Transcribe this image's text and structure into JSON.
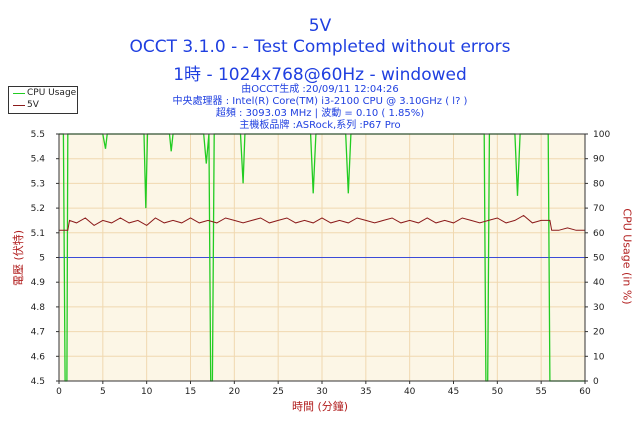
{
  "header": {
    "title1": "5V",
    "title2": "OCCT 3.1.0 -  - Test Completed without errors",
    "title3": "1時 - 1024x768@60Hz - windowed",
    "info1": "由OCCT生成 :20/09/11 12:04:26",
    "info2": "中央處理器 : Intel(R) Core(TM) i3-2100 CPU @ 3.10GHz (   l? )",
    "info3": "超頻 : 3093.03 MHz | 波動 = 0.10 ( 1.85%)",
    "info4": "主機板品牌 :ASRock,系列 :P67 Pro"
  },
  "colors": {
    "cpu": "#22cc22",
    "voltage": "#8b1a1a",
    "ref": "#3b4bd8",
    "plot_bg": "#fcf6e6",
    "grid": "#f0d8b0",
    "axis_text": "#b22020"
  },
  "chart_data": {
    "type": "line",
    "xlabel": "時間 (分鐘)",
    "ylabel_left": "電壓 (伏特)",
    "ylabel_right": "CPU Usage (in %)",
    "xlim": [
      0,
      60
    ],
    "ylim_left": [
      4.5,
      5.5
    ],
    "ylim_right": [
      0,
      100
    ],
    "x_ticks": [
      0,
      5,
      10,
      15,
      20,
      25,
      30,
      35,
      40,
      45,
      50,
      55,
      60
    ],
    "y_left_ticks": [
      "4.5",
      "4.6",
      "4.7",
      "4.8",
      "4.9",
      "5",
      "5.1",
      "5.2",
      "5.3",
      "5.4",
      "5.5"
    ],
    "y_right_ticks": [
      0,
      10,
      20,
      30,
      40,
      50,
      60,
      70,
      80,
      90,
      100
    ],
    "legend_position": "top-left",
    "reference_line": 5.0,
    "series": [
      {
        "name": "CPU Usage",
        "axis": "right",
        "baseline": 100,
        "x": [
          0,
          0.5,
          0.7,
          0.9,
          1.0,
          1.1,
          5.0,
          5.3,
          5.5,
          9.7,
          9.9,
          10.1,
          12.6,
          12.8,
          13.0,
          16.5,
          16.8,
          17.1,
          17.3,
          17.5,
          17.7,
          20.7,
          21.0,
          21.2,
          28.7,
          29.0,
          29.3,
          32.7,
          33.0,
          33.3,
          48.5,
          48.7,
          48.9,
          49.1,
          52.0,
          52.3,
          52.6,
          55.8,
          56.0,
          56.2,
          56.4,
          56.6,
          60
        ],
        "y": [
          100,
          100,
          0,
          0,
          100,
          100,
          100,
          94,
          100,
          100,
          70,
          100,
          100,
          93,
          100,
          100,
          88,
          100,
          0,
          0,
          100,
          100,
          80,
          100,
          100,
          76,
          100,
          100,
          76,
          100,
          100,
          0,
          0,
          100,
          100,
          75,
          100,
          100,
          0,
          0,
          0,
          0,
          0
        ]
      },
      {
        "name": "5V",
        "axis": "left",
        "x": [
          0,
          1.0,
          1.2,
          2,
          3,
          4,
          5,
          6,
          7,
          8,
          9,
          10,
          11,
          12,
          13,
          14,
          15,
          16,
          17,
          18,
          19,
          20,
          21,
          22,
          23,
          24,
          25,
          26,
          27,
          28,
          29,
          30,
          31,
          32,
          33,
          34,
          35,
          36,
          37,
          38,
          39,
          40,
          41,
          42,
          43,
          44,
          45,
          46,
          47,
          48,
          49,
          50,
          51,
          52,
          53,
          54,
          55,
          56.0,
          56.2,
          57,
          58,
          59,
          60
        ],
        "y": [
          5.11,
          5.11,
          5.15,
          5.14,
          5.16,
          5.13,
          5.15,
          5.14,
          5.16,
          5.14,
          5.15,
          5.13,
          5.16,
          5.14,
          5.15,
          5.14,
          5.16,
          5.14,
          5.15,
          5.14,
          5.16,
          5.15,
          5.14,
          5.15,
          5.16,
          5.14,
          5.15,
          5.16,
          5.14,
          5.15,
          5.14,
          5.16,
          5.14,
          5.15,
          5.14,
          5.16,
          5.15,
          5.14,
          5.15,
          5.16,
          5.14,
          5.15,
          5.14,
          5.16,
          5.14,
          5.15,
          5.14,
          5.16,
          5.15,
          5.14,
          5.15,
          5.16,
          5.14,
          5.15,
          5.17,
          5.14,
          5.15,
          5.15,
          5.11,
          5.11,
          5.12,
          5.11,
          5.11
        ]
      }
    ]
  }
}
